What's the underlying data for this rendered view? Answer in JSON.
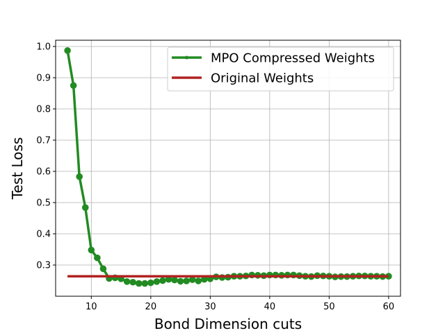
{
  "chart_data": {
    "type": "line",
    "xlabel": "Bond Dimension cuts",
    "ylabel": "Test Loss",
    "xlim": [
      4,
      62
    ],
    "ylim": [
      0.2,
      1.02
    ],
    "xticks": [
      10,
      20,
      30,
      40,
      50,
      60
    ],
    "yticks": [
      0.3,
      0.4,
      0.5,
      0.6,
      0.7,
      0.8,
      0.9,
      1.0
    ],
    "ytick_labels": [
      "0.3",
      "0.4",
      "0.5",
      "0.6",
      "0.7",
      "0.8",
      "0.9",
      "1.0"
    ],
    "grid": true,
    "legend_position": "top-right",
    "series": [
      {
        "name": "MPO Compressed Weights",
        "color": "#228b22",
        "marker": "circle",
        "x": [
          6,
          7,
          8,
          9,
          10,
          11,
          12,
          13,
          14,
          15,
          16,
          17,
          18,
          19,
          20,
          21,
          22,
          23,
          24,
          25,
          26,
          27,
          28,
          29,
          30,
          31,
          32,
          33,
          34,
          35,
          36,
          37,
          38,
          39,
          40,
          41,
          42,
          43,
          44,
          45,
          46,
          47,
          48,
          49,
          50,
          51,
          52,
          53,
          54,
          55,
          56,
          57,
          58,
          59,
          60
        ],
        "y": [
          0.987,
          0.875,
          0.583,
          0.484,
          0.348,
          0.323,
          0.288,
          0.257,
          0.259,
          0.256,
          0.247,
          0.245,
          0.241,
          0.241,
          0.243,
          0.247,
          0.25,
          0.254,
          0.252,
          0.248,
          0.249,
          0.253,
          0.249,
          0.254,
          0.256,
          0.262,
          0.26,
          0.261,
          0.264,
          0.264,
          0.265,
          0.268,
          0.267,
          0.266,
          0.268,
          0.268,
          0.267,
          0.268,
          0.268,
          0.266,
          0.264,
          0.263,
          0.266,
          0.265,
          0.264,
          0.262,
          0.263,
          0.263,
          0.264,
          0.265,
          0.265,
          0.264,
          0.264,
          0.263,
          0.264
        ]
      },
      {
        "name": "Original Weights",
        "color": "#b22222",
        "marker": "none",
        "x": [
          6,
          60
        ],
        "y": [
          0.264,
          0.264
        ]
      }
    ]
  }
}
